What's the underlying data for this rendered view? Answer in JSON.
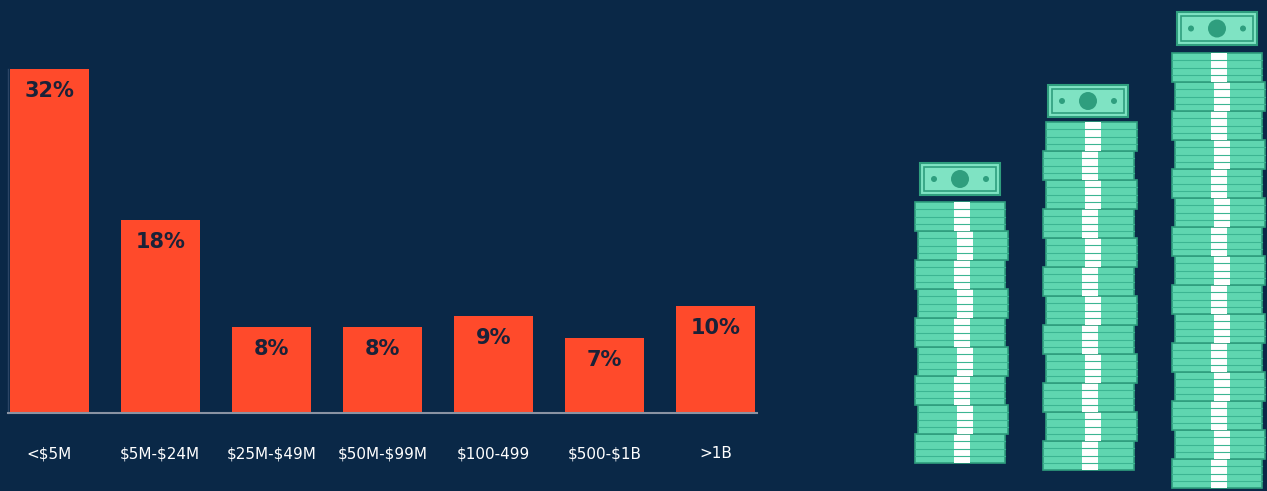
{
  "chart_data": {
    "type": "bar",
    "categories": [
      "<$5M",
      "$5M-$24M",
      "$25M-$49M",
      "$50M-$99M",
      "$100-499",
      "$500-$1B",
      ">1B"
    ],
    "values": [
      32,
      18,
      8,
      8,
      9,
      7,
      10
    ],
    "value_labels": [
      "32%",
      "18%",
      "8%",
      "8%",
      "9%",
      "7%",
      "10%"
    ],
    "color": "#ff4a2b",
    "ylim": [
      0,
      32
    ],
    "data_labels": true,
    "tick_labels": "x"
  }
}
